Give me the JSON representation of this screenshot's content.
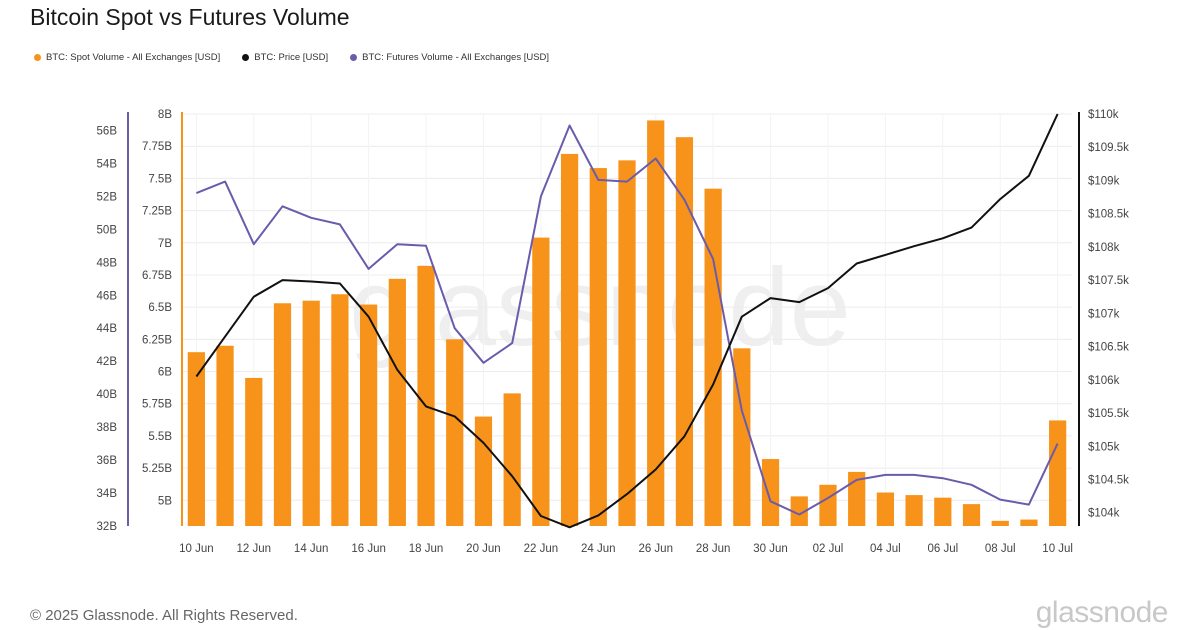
{
  "header": {
    "title": "Bitcoin Spot vs Futures Volume"
  },
  "legend": [
    {
      "label": "BTC: Spot Volume - All Exchanges [USD]",
      "color": "#f7931a"
    },
    {
      "label": "BTC: Price [USD]",
      "color": "#111111"
    },
    {
      "label": "BTC: Futures Volume - All Exchanges [USD]",
      "color": "#6b5bab"
    }
  ],
  "footer": {
    "copyright": "© 2025 Glassnode. All Rights Reserved.",
    "brand": "glassnode",
    "watermark": "glassnode"
  },
  "chart_data": {
    "type": "bar",
    "title": "Bitcoin Spot vs Futures Volume",
    "x": [
      "10 Jun",
      "11 Jun",
      "12 Jun",
      "13 Jun",
      "14 Jun",
      "15 Jun",
      "16 Jun",
      "17 Jun",
      "18 Jun",
      "19 Jun",
      "20 Jun",
      "21 Jun",
      "22 Jun",
      "23 Jun",
      "24 Jun",
      "25 Jun",
      "26 Jun",
      "27 Jun",
      "28 Jun",
      "29 Jun",
      "30 Jun",
      "01 Jul",
      "02 Jul",
      "03 Jul",
      "04 Jul",
      "05 Jul",
      "06 Jul",
      "07 Jul",
      "08 Jul",
      "09 Jul",
      "10 Jul"
    ],
    "xticks": [
      "10 Jun",
      "12 Jun",
      "14 Jun",
      "16 Jun",
      "18 Jun",
      "20 Jun",
      "22 Jun",
      "24 Jun",
      "26 Jun",
      "28 Jun",
      "30 Jun",
      "02 Jul",
      "04 Jul",
      "06 Jul",
      "08 Jul",
      "10 Jul"
    ],
    "axes": {
      "futures_left": {
        "ylim": [
          32,
          57
        ],
        "ticks": [
          "32B",
          "34B",
          "36B",
          "38B",
          "40B",
          "42B",
          "44B",
          "46B",
          "48B",
          "50B",
          "52B",
          "54B",
          "56B"
        ]
      },
      "spot_inner_left": {
        "ylim": [
          4.8,
          8.0
        ],
        "ticks": [
          "5B",
          "5.25B",
          "5.5B",
          "5.75B",
          "6B",
          "6.25B",
          "6.5B",
          "6.75B",
          "7B",
          "7.25B",
          "7.5B",
          "7.75B",
          "8B"
        ]
      },
      "price_right": {
        "ylim": [
          103800,
          110000
        ],
        "ticks": [
          "$104k",
          "$104.5k",
          "$105k",
          "$105.5k",
          "$106k",
          "$106.5k",
          "$107k",
          "$107.5k",
          "$108k",
          "$108.5k",
          "$109k",
          "$109.5k",
          "$110k"
        ]
      }
    },
    "grid": true,
    "legend_position": "top-left",
    "series": [
      {
        "name": "BTC: Spot Volume - All Exchanges [USD]",
        "type": "bar",
        "axis": "spot_inner_left",
        "color": "#f7931a",
        "unit": "B USD",
        "values": [
          6.15,
          6.2,
          5.95,
          6.53,
          6.55,
          6.6,
          6.52,
          6.72,
          6.82,
          6.25,
          5.65,
          5.83,
          7.04,
          7.69,
          7.58,
          7.64,
          7.95,
          7.82,
          7.42,
          6.18,
          5.32,
          5.03,
          5.12,
          5.22,
          5.06,
          5.04,
          5.02,
          4.97,
          4.84,
          4.85,
          5.62
        ]
      },
      {
        "name": "BTC: Price [USD]",
        "type": "line",
        "axis": "price_right",
        "color": "#111111",
        "unit": "USD",
        "values": [
          106050,
          106650,
          107250,
          107500,
          107480,
          107450,
          106950,
          106150,
          105600,
          105450,
          105050,
          104550,
          103950,
          103780,
          103960,
          104280,
          104650,
          105150,
          105930,
          106950,
          107230,
          107170,
          107380,
          107750,
          107880,
          108010,
          108130,
          108290,
          108720,
          109070,
          110000
        ]
      },
      {
        "name": "BTC: Futures Volume - All Exchanges [USD]",
        "type": "line",
        "axis": "futures_left",
        "color": "#6b5bab",
        "unit": "B USD",
        "values": [
          52.2,
          52.9,
          49.1,
          51.4,
          50.7,
          50.3,
          47.6,
          49.1,
          49.0,
          44.0,
          41.9,
          43.1,
          52.0,
          56.3,
          53.0,
          52.9,
          54.3,
          51.8,
          48.2,
          39.0,
          33.5,
          32.7,
          33.7,
          34.8,
          35.1,
          35.1,
          34.9,
          34.5,
          33.6,
          33.3,
          37.0
        ]
      }
    ]
  }
}
